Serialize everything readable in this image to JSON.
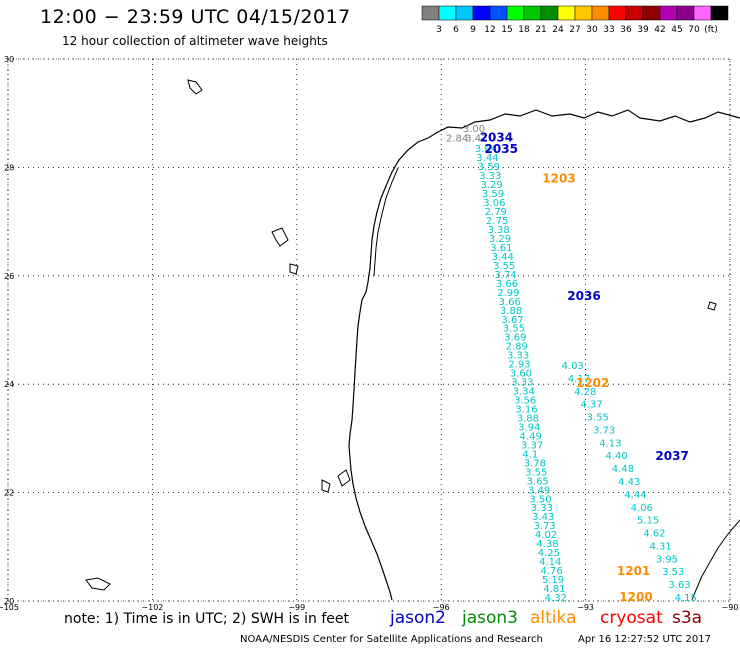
{
  "title": "12:00 − 23:59 UTC 04/15/2017",
  "subtitle": "12 hour collection of altimeter wave heights",
  "colorbar": {
    "colors": [
      "#808080",
      "#00ffff",
      "#00c8ff",
      "#0000ff",
      "#0050ff",
      "#00ff00",
      "#00c800",
      "#008c00",
      "#ffff00",
      "#ffc800",
      "#ff8c00",
      "#ff0000",
      "#c80000",
      "#8c0000",
      "#b400b4",
      "#8c008c",
      "#ff64ff",
      "#000000"
    ],
    "labels": [
      "3",
      "6",
      "9",
      "12",
      "15",
      "18",
      "21",
      "24",
      "27",
      "30",
      "33",
      "36",
      "39",
      "42",
      "45",
      "70",
      "(ft)"
    ]
  },
  "axes": {
    "lon_ticks": [
      "−105",
      "−102",
      "−99",
      "−96",
      "−93",
      "−90"
    ],
    "lat_ticks": [
      "30",
      "28",
      "26",
      "24",
      "22",
      "20"
    ],
    "lon_range": [
      -105,
      -90
    ],
    "lat_range": [
      20,
      30
    ]
  },
  "track_times": [
    {
      "label": "2034",
      "color": "#0000c8",
      "lon": -95.2,
      "lat": 28.48
    },
    {
      "label": "2035",
      "color": "#0000c8",
      "lon": -95.1,
      "lat": 28.27
    },
    {
      "label": "1203",
      "color": "#ff8c00",
      "lon": -93.9,
      "lat": 27.72
    },
    {
      "label": "2036",
      "color": "#0000c8",
      "lon": -93.38,
      "lat": 25.55
    },
    {
      "label": "1202",
      "color": "#ff8c00",
      "lon": -93.2,
      "lat": 23.95
    },
    {
      "label": "2037",
      "color": "#0000c8",
      "lon": -91.55,
      "lat": 22.6
    },
    {
      "label": "1201",
      "color": "#ff8c00",
      "lon": -92.35,
      "lat": 20.48
    },
    {
      "label": "1200",
      "color": "#ff8c00",
      "lon": -92.3,
      "lat": 20.0
    }
  ],
  "track_a": {
    "color": "#00c8c8",
    "start": [
      -95.3,
      28.28
    ],
    "end": [
      -93.85,
      20.0
    ],
    "values": [
      "3.64",
      "3.44",
      "3.59",
      "3.33",
      "3.29",
      "3.59",
      "3.06",
      "2.79",
      "2.75",
      "3.38",
      "3.29",
      "3.61",
      "3.44",
      "3.55",
      "3.74",
      "3.66",
      "2.99",
      "3.66",
      "3.88",
      "3.67",
      "3.55",
      "3.69",
      "2.89",
      "3.33",
      "2.93",
      "3.60",
      "3.33",
      "3.34",
      "3.56",
      "3.16",
      "3.88",
      "3.94",
      "4.49",
      "3.37",
      "4.1",
      "3.78",
      "3.55",
      "3.65",
      "3.49",
      "3.50",
      "3.33",
      "3.43",
      "3.73",
      "4.02",
      "4.38",
      "4.25",
      "4.14",
      "4.76",
      "5.19",
      "4.81",
      "4.32"
    ]
  },
  "track_b": {
    "color": "#00c8c8",
    "start": [
      -93.5,
      24.28
    ],
    "end": [
      -91.15,
      20.0
    ],
    "values": [
      "4.03",
      "4.17",
      "4.28",
      "4.37",
      "3.55",
      "3.73",
      "4.13",
      "4.40",
      "4.48",
      "4.43",
      "4.44",
      "4.06",
      "5.15",
      "4.62",
      "4.31",
      "3.95",
      "3.53",
      "3.63",
      "4.15"
    ]
  },
  "gray_values": [
    {
      "v": "3.00",
      "lon": -95.55,
      "lat": 28.65
    },
    {
      "v": "2.84",
      "lon": -95.9,
      "lat": 28.48
    },
    {
      "v": "3.42",
      "lon": -95.5,
      "lat": 28.48
    }
  ],
  "note": "note: 1) Time is in UTC; 2) SWH is in feet",
  "legend": [
    {
      "text": "jason2",
      "color": "#0000c8"
    },
    {
      "text": "jason3",
      "color": "#008c00"
    },
    {
      "text": "altika",
      "color": "#ff8c00"
    },
    {
      "text": "cryosat",
      "color": "#ff0000"
    },
    {
      "text": "s3a",
      "color": "#8c0000"
    }
  ],
  "footer_left": "NOAA/NESDIS Center for Satellite Applications and Research",
  "footer_right": "Apr 16 12:27:52 UTC 2017"
}
